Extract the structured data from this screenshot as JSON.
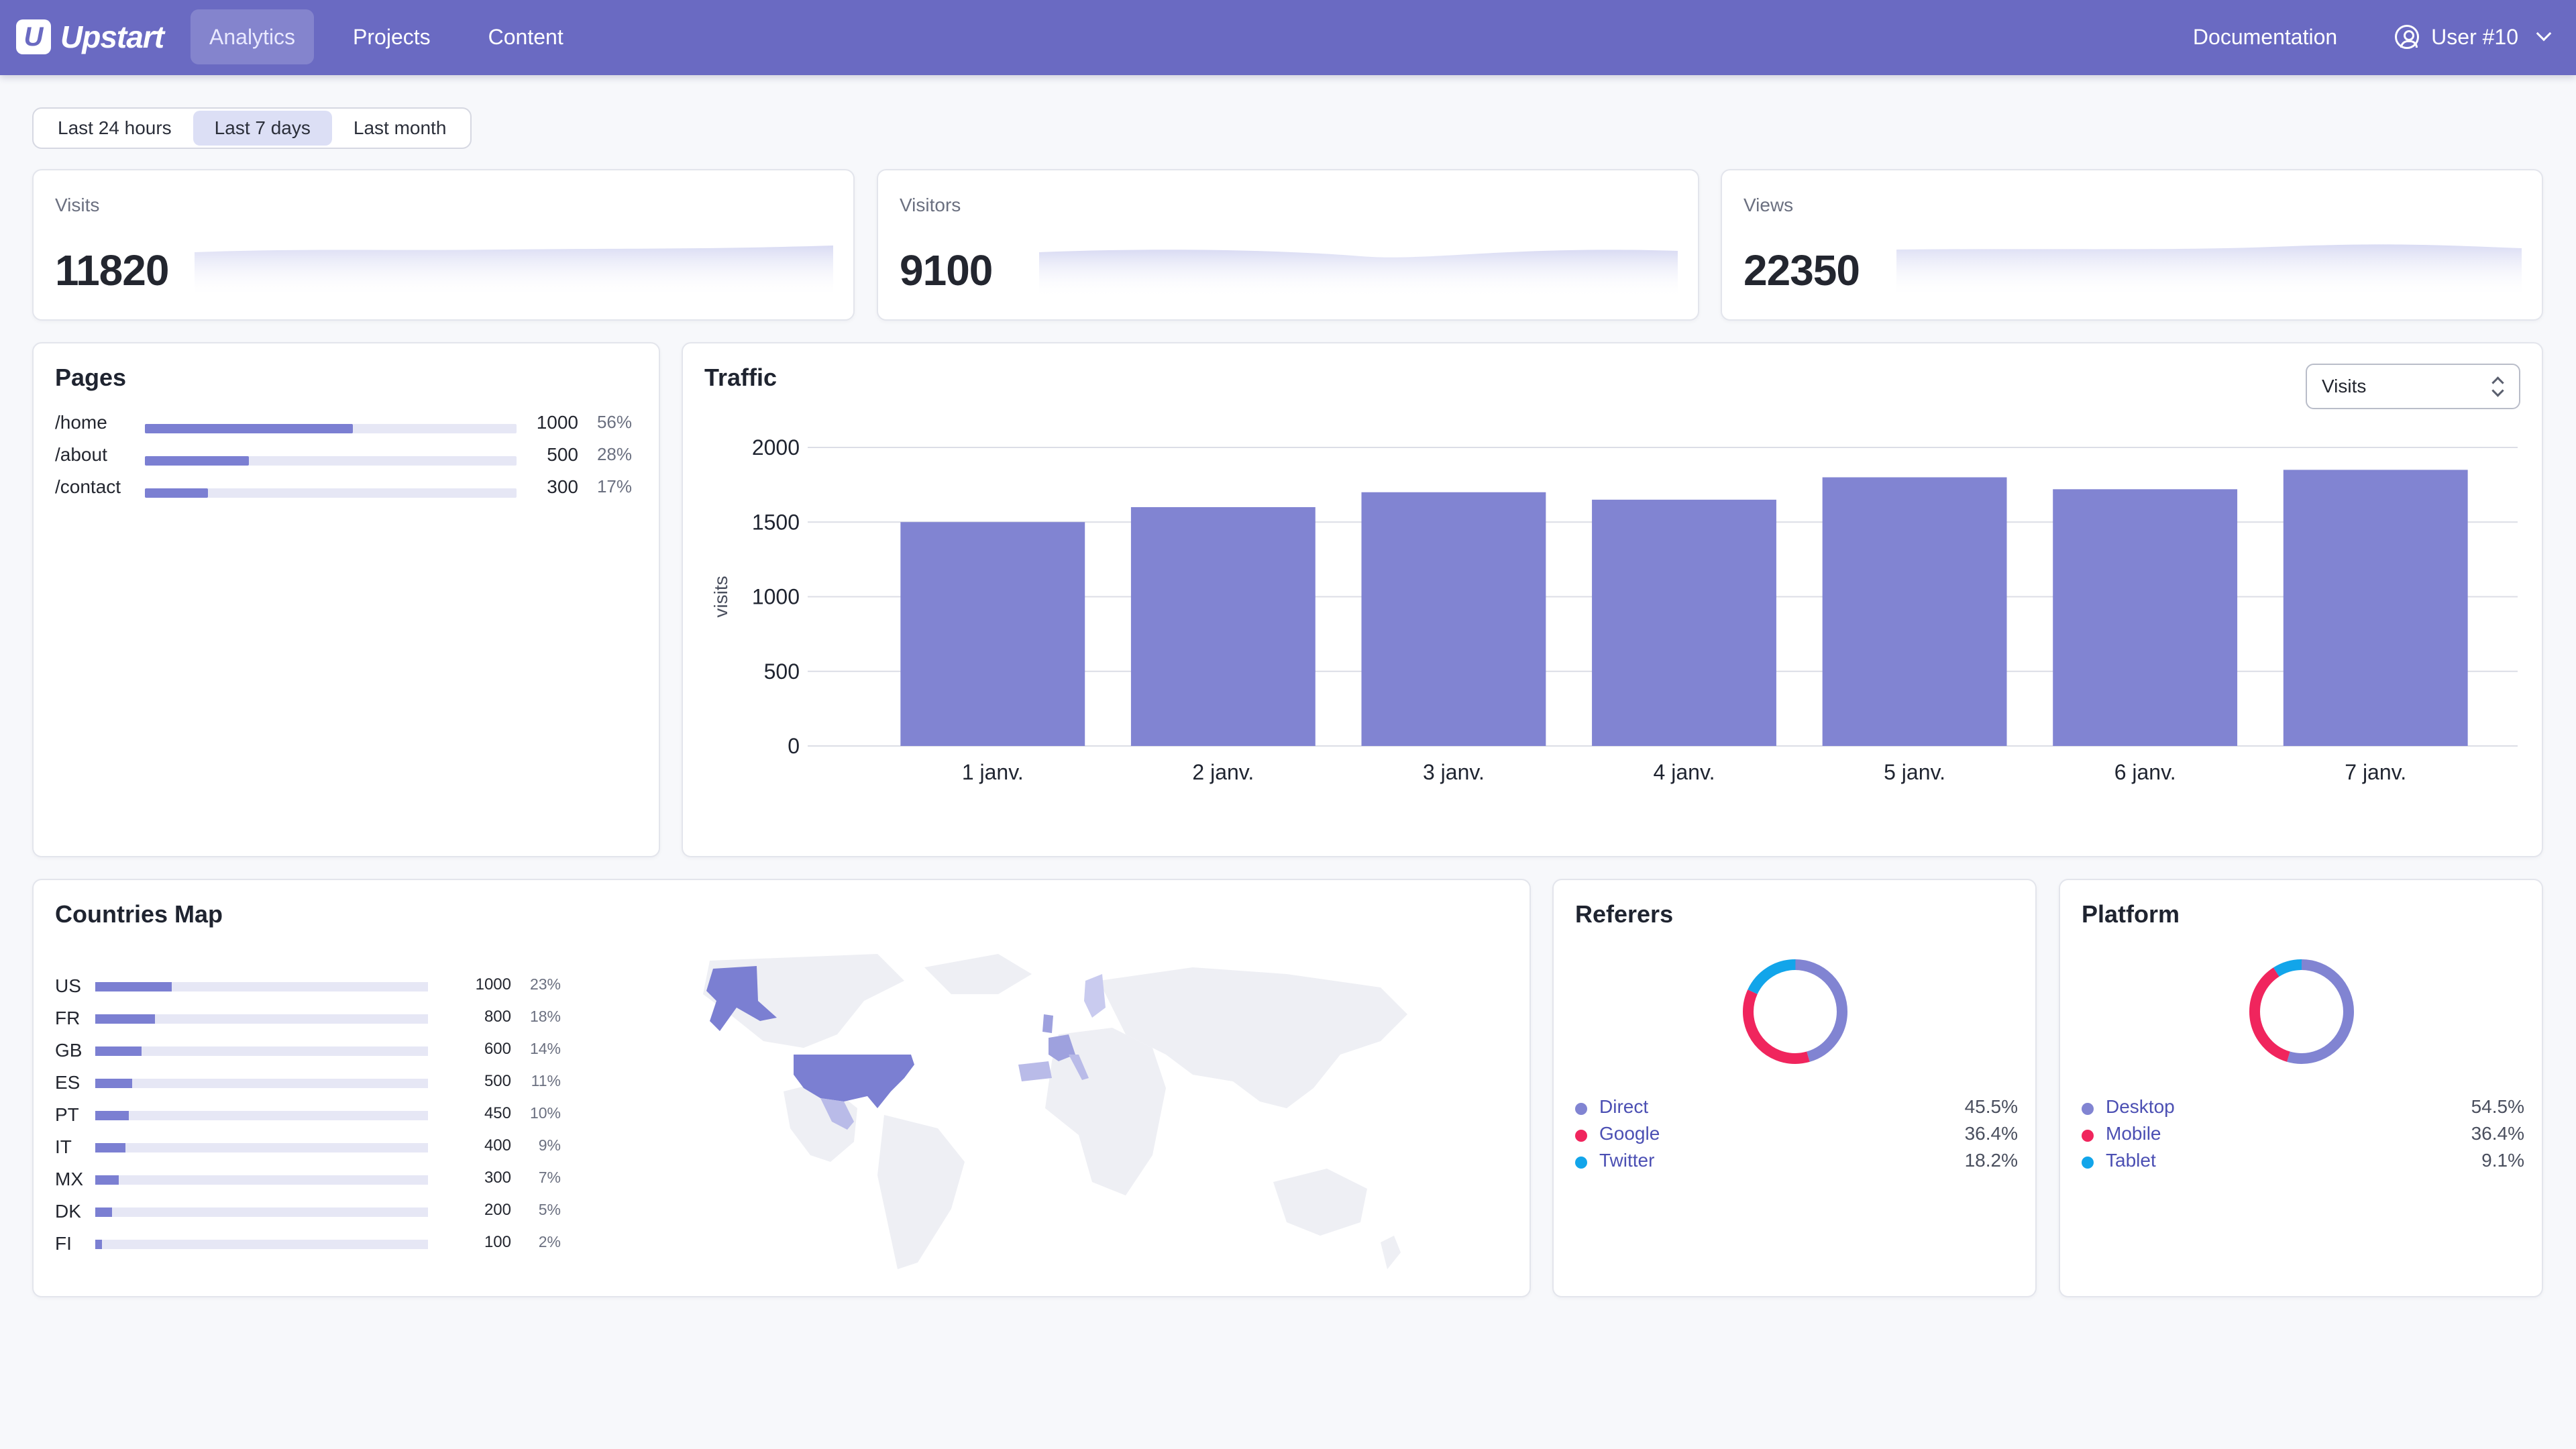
{
  "app": {
    "name": "Upstart",
    "logo_letter": "U"
  },
  "nav": {
    "items": [
      {
        "label": "Analytics",
        "active": true
      },
      {
        "label": "Projects",
        "active": false
      },
      {
        "label": "Content",
        "active": false
      }
    ],
    "documentation": "Documentation",
    "user": "User #10"
  },
  "range": {
    "options": [
      "Last 24 hours",
      "Last 7 days",
      "Last month"
    ],
    "selected": "Last 7 days"
  },
  "stats": [
    {
      "label": "Visits",
      "value": "11820"
    },
    {
      "label": "Visitors",
      "value": "9100"
    },
    {
      "label": "Views",
      "value": "22350"
    }
  ],
  "pages": {
    "title": "Pages",
    "rows": [
      {
        "path": "/home",
        "value": "1000",
        "pct": "56%",
        "share": 0.56
      },
      {
        "path": "/about",
        "value": "500",
        "pct": "28%",
        "share": 0.28
      },
      {
        "path": "/contact",
        "value": "300",
        "pct": "17%",
        "share": 0.17
      }
    ]
  },
  "traffic": {
    "title": "Traffic",
    "metric_selected": "Visits"
  },
  "chart_data": {
    "type": "bar",
    "categories": [
      "1 janv.",
      "2 janv.",
      "3 janv.",
      "4 janv.",
      "5 janv.",
      "6 janv.",
      "7 janv."
    ],
    "values": [
      1500,
      1600,
      1700,
      1650,
      1800,
      1720,
      1850
    ],
    "ylabel": "visits",
    "yticks": [
      "0",
      "500",
      "1000",
      "1500",
      "2000"
    ],
    "ylim": [
      0,
      2000
    ],
    "grid": true,
    "color": "#8184d2"
  },
  "countries": {
    "title": "Countries Map",
    "rows": [
      {
        "code": "US",
        "value": "1000",
        "pct": "23%",
        "share": 0.23
      },
      {
        "code": "FR",
        "value": "800",
        "pct": "18%",
        "share": 0.18
      },
      {
        "code": "GB",
        "value": "600",
        "pct": "14%",
        "share": 0.14
      },
      {
        "code": "ES",
        "value": "500",
        "pct": "11%",
        "share": 0.11
      },
      {
        "code": "PT",
        "value": "450",
        "pct": "10%",
        "share": 0.1
      },
      {
        "code": "IT",
        "value": "400",
        "pct": "9%",
        "share": 0.09
      },
      {
        "code": "MX",
        "value": "300",
        "pct": "7%",
        "share": 0.07
      },
      {
        "code": "DK",
        "value": "200",
        "pct": "5%",
        "share": 0.05
      },
      {
        "code": "FI",
        "value": "100",
        "pct": "2%",
        "share": 0.02
      }
    ]
  },
  "referers": {
    "title": "Referers",
    "items": [
      {
        "name": "Direct",
        "pct": "45.5%",
        "share": 0.455,
        "color": "#8184d2"
      },
      {
        "name": "Google",
        "pct": "36.4%",
        "share": 0.364,
        "color": "#f0255d"
      },
      {
        "name": "Twitter",
        "pct": "18.2%",
        "share": 0.182,
        "color": "#12a5ea"
      }
    ]
  },
  "platform": {
    "title": "Platform",
    "items": [
      {
        "name": "Desktop",
        "pct": "54.5%",
        "share": 0.545,
        "color": "#8184d2"
      },
      {
        "name": "Mobile",
        "pct": "36.4%",
        "share": 0.364,
        "color": "#f0255d"
      },
      {
        "name": "Tablet",
        "pct": "9.1%",
        "share": 0.091,
        "color": "#12a5ea"
      }
    ]
  }
}
